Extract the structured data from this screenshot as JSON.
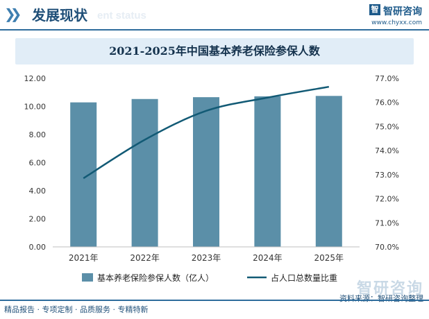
{
  "header": {
    "title": "发展现状",
    "ghost_text": "ent status",
    "brand_name": "智研咨询",
    "brand_url": "www.chyxx.com"
  },
  "footer": {
    "left_text": "精品报告 · 专项定制 · 品质服务 · 专精特新",
    "source_text": "资料来源：智研咨询整理",
    "brand_watermark": "智研咨询"
  },
  "colors": {
    "bar": "#5b8fa8",
    "line": "#125a75",
    "accent": "#2e6c9c"
  },
  "chart_data": {
    "type": "bar",
    "title": "2021-2025年中国基本养老保险参保人数",
    "categories": [
      "2021年",
      "2022年",
      "2023年",
      "2024年",
      "2025年"
    ],
    "series": [
      {
        "name": "基本养老保险参保人数（亿人）",
        "type": "bar",
        "axis": "left",
        "values": [
          10.29,
          10.53,
          10.66,
          10.72,
          10.75
        ]
      },
      {
        "name": "占人口总数量比重",
        "type": "line",
        "axis": "right",
        "values": [
          72.85,
          74.45,
          75.65,
          76.2,
          76.65
        ]
      }
    ],
    "y_left": {
      "min": 0,
      "max": 12,
      "ticks": [
        0,
        2,
        4,
        6,
        8,
        10,
        12
      ],
      "tick_labels": [
        "0.00",
        "2.00",
        "4.00",
        "6.00",
        "8.00",
        "10.00",
        "12.00"
      ]
    },
    "y_right": {
      "min": 70,
      "max": 77,
      "ticks": [
        70,
        71,
        72,
        73,
        74,
        75,
        76,
        77
      ],
      "tick_labels": [
        "70.0%",
        "71.0%",
        "72.0%",
        "73.0%",
        "74.0%",
        "75.0%",
        "76.0%",
        "77.0%"
      ]
    },
    "grid": false,
    "legend_position": "bottom"
  }
}
